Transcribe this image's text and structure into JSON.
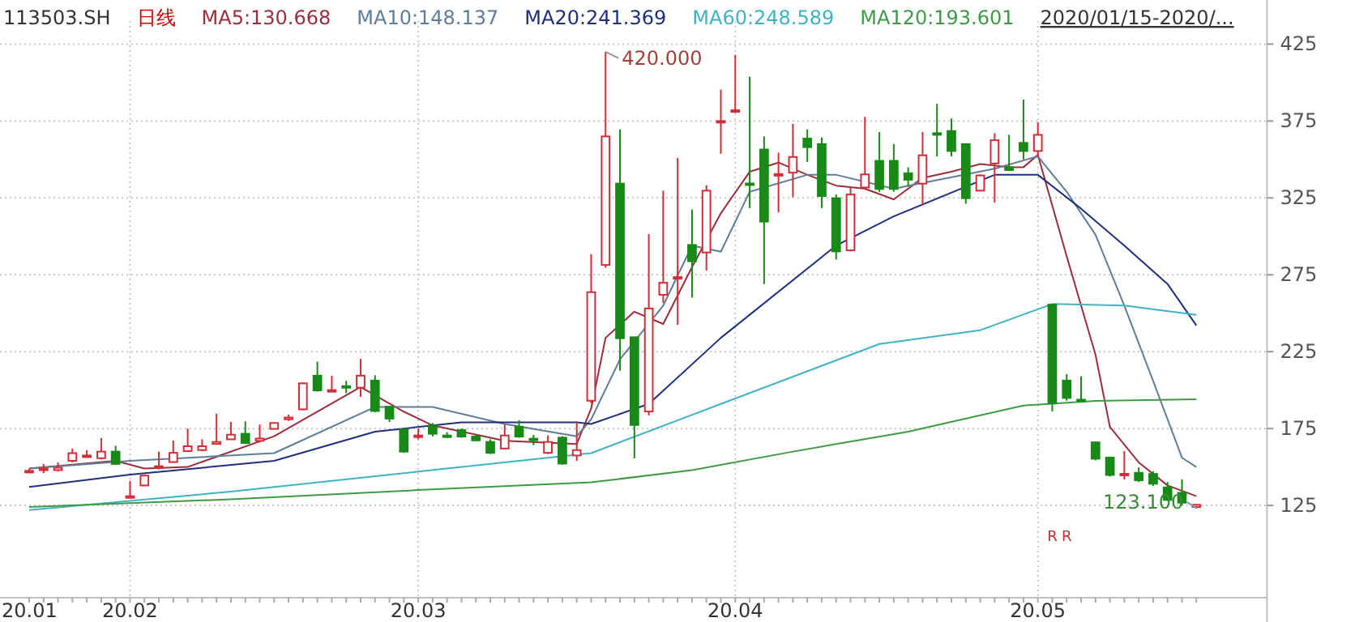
{
  "chart_data": {
    "type": "candlestick",
    "title": "113503.SH",
    "subtitle": "日线",
    "categories": [
      "20.01",
      null,
      null,
      null,
      null,
      null,
      null,
      "20.02",
      null,
      null,
      null,
      null,
      null,
      null,
      null,
      null,
      null,
      null,
      null,
      null,
      null,
      null,
      null,
      null,
      null,
      null,
      null,
      "20.03",
      null,
      null,
      null,
      null,
      null,
      null,
      null,
      null,
      null,
      null,
      null,
      null,
      null,
      null,
      null,
      null,
      null,
      null,
      null,
      null,
      null,
      "20.04",
      null,
      null,
      null,
      null,
      null,
      null,
      null,
      null,
      null,
      null,
      null,
      null,
      null,
      null,
      null,
      null,
      null,
      null,
      null,
      null,
      "20.05",
      null,
      null,
      null,
      null,
      null,
      null,
      null,
      null,
      null,
      null,
      null
    ],
    "ohlc": [
      [
        147,
        149,
        146,
        147.5
      ],
      [
        148,
        152,
        146,
        149
      ],
      [
        148,
        153,
        147,
        149.5
      ],
      [
        154,
        162,
        153,
        159
      ],
      [
        157.5,
        161,
        156,
        157.5
      ],
      [
        155.7,
        168.8,
        155,
        160
      ],
      [
        160,
        163.8,
        151.5,
        152
      ],
      [
        130.5,
        141,
        130,
        131
      ],
      [
        138,
        145,
        137.5,
        144.4
      ],
      [
        149.5,
        160,
        148.5,
        150.5
      ],
      [
        153.2,
        167.3,
        152.8,
        159.2
      ],
      [
        160.3,
        175,
        160,
        163.5
      ],
      [
        161,
        168,
        160.3,
        163.5
      ],
      [
        165,
        184.6,
        164.5,
        166.3
      ],
      [
        168,
        179.3,
        167.8,
        171
      ],
      [
        171.6,
        179.7,
        165.2,
        165.6
      ],
      [
        167,
        177.6,
        166,
        168.5
      ],
      [
        174.8,
        178.6,
        174.5,
        178.6
      ],
      [
        181,
        184,
        180,
        182.2
      ],
      [
        187.5,
        205,
        186.8,
        204.4
      ],
      [
        209.4,
        218.5,
        199,
        199.8
      ],
      [
        199.8,
        209.4,
        199,
        200
      ],
      [
        202.6,
        206,
        198,
        202.4
      ],
      [
        201.6,
        220.3,
        195.6,
        209.4
      ],
      [
        206.2,
        209.7,
        185.7,
        186.4
      ],
      [
        189.2,
        189.5,
        179.3,
        181.5
      ],
      [
        174.4,
        174.6,
        159.2,
        160
      ],
      [
        170,
        175,
        168,
        170.5
      ],
      [
        176.9,
        178.6,
        169.9,
        171.6
      ],
      [
        170.5,
        172.6,
        168.8,
        170.3
      ],
      [
        174,
        175,
        169,
        169.8
      ],
      [
        169.8,
        171,
        167,
        167.3
      ],
      [
        166.3,
        168,
        158.5,
        159.2
      ],
      [
        162,
        177.6,
        161.6,
        170.5
      ],
      [
        176.2,
        180.4,
        169,
        169.8
      ],
      [
        168.4,
        170.9,
        164.2,
        168.2
      ],
      [
        159.2,
        170.5,
        158.5,
        166.3
      ],
      [
        169.1,
        170,
        151.5,
        152.2
      ],
      [
        157.5,
        179.7,
        154,
        161
      ],
      [
        193.1,
        288.4,
        191.4,
        263.7
      ],
      [
        281.4,
        420,
        279.6,
        365
      ],
      [
        334.3,
        369.6,
        212.6,
        233.7
      ],
      [
        234.4,
        234.6,
        155.6,
        177.3
      ],
      [
        186.1,
        301.5,
        183.6,
        253.1
      ],
      [
        262,
        329.7,
        256.7,
        269.8
      ],
      [
        273.3,
        350.9,
        242.5,
        273.5
      ],
      [
        294.4,
        317.4,
        260.2,
        283.8
      ],
      [
        289.5,
        333.2,
        277.8,
        329.7
      ],
      [
        374.9,
        395.4,
        353.7,
        375
      ],
      [
        381.9,
        418,
        380.2,
        382
      ],
      [
        334.4,
        403.8,
        318.4,
        333.6
      ],
      [
        356.5,
        365,
        269,
        309.6
      ],
      [
        340.3,
        354.4,
        315.6,
        340.5
      ],
      [
        341.4,
        373.1,
        325.5,
        351.6
      ],
      [
        363.6,
        369.6,
        348.4,
        358
      ],
      [
        360,
        364.3,
        318.4,
        326.2
      ],
      [
        324.8,
        327.2,
        284.9,
        290.2
      ],
      [
        290.9,
        331.5,
        290.2,
        327.2
      ],
      [
        331.8,
        377.7,
        330.4,
        340.3
      ],
      [
        349.1,
        367.8,
        329,
        330.8
      ],
      [
        349.1,
        360,
        329,
        330.8
      ],
      [
        341,
        344.9,
        332.5,
        336.8
      ],
      [
        334.3,
        367.8,
        320.2,
        352.7
      ],
      [
        367.1,
        386.2,
        352,
        366.9
      ],
      [
        368.5,
        376.6,
        352,
        355.5
      ],
      [
        360,
        360.3,
        321.2,
        324.8
      ],
      [
        329.7,
        340.3,
        329.5,
        339.6
      ],
      [
        347.4,
        367.1,
        321.9,
        362.5
      ],
      [
        344.9,
        366,
        343,
        343.1
      ],
      [
        360.8,
        389,
        350,
        355.5
      ],
      [
        355.5,
        374.2,
        352,
        366
      ],
      [
        255.6,
        255.8,
        186.1,
        191.4
      ],
      [
        206.2,
        210.4,
        193.1,
        194.9
      ],
      [
        193.8,
        209,
        192.1,
        193.6
      ],
      [
        166,
        166.7,
        154.3,
        155.4
      ],
      [
        156.1,
        156.8,
        143.8,
        144.8
      ],
      [
        145.5,
        160.3,
        141.9,
        145.6
      ],
      [
        146.2,
        149.7,
        140.2,
        141.3
      ],
      [
        145.5,
        147.2,
        137.7,
        139.1
      ],
      [
        136.7,
        140.2,
        127.9,
        128.6
      ],
      [
        133.2,
        142,
        125,
        126.8
      ],
      [
        124,
        126,
        123.1,
        125.4
      ]
    ],
    "series": [
      {
        "type": "line",
        "name": "MA5:130.668",
        "color": "#9b2d3c",
        "values": [
          149,
          null,
          null,
          null,
          null,
          null,
          154,
          null,
          149,
          null,
          null,
          150,
          null,
          null,
          null,
          null,
          null,
          170,
          null,
          null,
          null,
          null,
          null,
          202,
          null,
          null,
          186,
          null,
          177,
          null,
          null,
          null,
          null,
          167,
          null,
          null,
          null,
          null,
          165,
          188,
          234,
          null,
          251,
          null,
          243,
          null,
          280,
          null,
          315,
          null,
          342,
          null,
          348,
          null,
          340,
          null,
          333,
          null,
          331,
          null,
          324,
          null,
          338,
          null,
          342,
          null,
          347,
          null,
          345,
          345,
          353,
          null,
          287,
          null,
          223,
          176,
          null,
          153,
          null,
          138,
          null,
          131
        ]
      },
      {
        "type": "line",
        "name": "MA10:148.137",
        "color": "#5f7d99",
        "values": [
          149,
          null,
          null,
          null,
          null,
          null,
          null,
          154,
          null,
          null,
          null,
          null,
          null,
          null,
          null,
          null,
          null,
          159,
          null,
          null,
          null,
          null,
          null,
          null,
          189,
          null,
          null,
          null,
          189,
          null,
          null,
          null,
          null,
          178,
          null,
          null,
          null,
          null,
          170,
          181,
          null,
          220,
          null,
          null,
          255,
          null,
          294,
          null,
          290,
          null,
          329,
          null,
          null,
          null,
          340,
          null,
          340,
          null,
          null,
          null,
          331,
          null,
          null,
          null,
          null,
          null,
          null,
          344,
          null,
          null,
          352,
          null,
          329,
          null,
          301,
          null,
          255,
          null,
          206,
          null,
          156,
          150
        ]
      },
      {
        "type": "line",
        "name": "MA20:241.369",
        "color": "#1f2f7f",
        "values": [
          137,
          null,
          null,
          null,
          null,
          null,
          null,
          145,
          null,
          null,
          null,
          null,
          null,
          null,
          null,
          null,
          null,
          154,
          null,
          null,
          null,
          null,
          null,
          null,
          173,
          null,
          null,
          null,
          null,
          null,
          179,
          null,
          null,
          null,
          null,
          null,
          null,
          null,
          179,
          178,
          null,
          null,
          null,
          191,
          null,
          null,
          null,
          null,
          234,
          null,
          null,
          null,
          null,
          null,
          null,
          null,
          294,
          null,
          null,
          null,
          313,
          null,
          null,
          null,
          null,
          null,
          null,
          340,
          null,
          null,
          340,
          null,
          null,
          318,
          null,
          null,
          294,
          null,
          null,
          269,
          null,
          242
        ]
      },
      {
        "type": "line",
        "name": "MA60:248.589",
        "color": "#3fb3c4",
        "values": [
          122,
          null,
          null,
          null,
          null,
          null,
          null,
          null,
          null,
          null,
          null,
          null,
          null,
          null,
          134,
          null,
          null,
          null,
          null,
          null,
          null,
          null,
          null,
          null,
          null,
          null,
          null,
          147,
          null,
          null,
          null,
          null,
          null,
          null,
          null,
          null,
          null,
          null,
          null,
          159,
          null,
          null,
          null,
          null,
          null,
          null,
          null,
          null,
          191,
          null,
          null,
          null,
          null,
          null,
          null,
          null,
          null,
          null,
          null,
          230,
          null,
          null,
          null,
          null,
          null,
          null,
          239,
          null,
          null,
          null,
          null,
          256,
          null,
          null,
          null,
          null,
          255,
          null,
          null,
          null,
          null,
          249
        ]
      },
      {
        "type": "line",
        "name": "MA120:193.601",
        "color": "#3e9b45",
        "values": [
          124,
          null,
          null,
          null,
          null,
          null,
          null,
          null,
          null,
          null,
          null,
          null,
          null,
          null,
          129,
          null,
          null,
          null,
          null,
          null,
          null,
          null,
          null,
          null,
          null,
          null,
          null,
          135,
          null,
          null,
          null,
          null,
          null,
          null,
          null,
          null,
          null,
          null,
          null,
          140,
          null,
          null,
          null,
          null,
          null,
          null,
          148,
          null,
          null,
          null,
          null,
          null,
          null,
          160,
          null,
          null,
          null,
          null,
          null,
          null,
          null,
          173,
          null,
          null,
          null,
          null,
          null,
          null,
          null,
          190,
          null,
          null,
          null,
          null,
          193,
          null,
          null,
          null,
          null,
          null,
          null,
          194
        ]
      }
    ],
    "ylim": [
      65,
      440
    ],
    "yticks": [
      125,
      175,
      225,
      275,
      325,
      375,
      425
    ],
    "grid": true,
    "legend": "top",
    "annotations": [
      "420.000",
      "123.100",
      "2020/01/15-2020/...",
      "R",
      "R"
    ]
  }
}
